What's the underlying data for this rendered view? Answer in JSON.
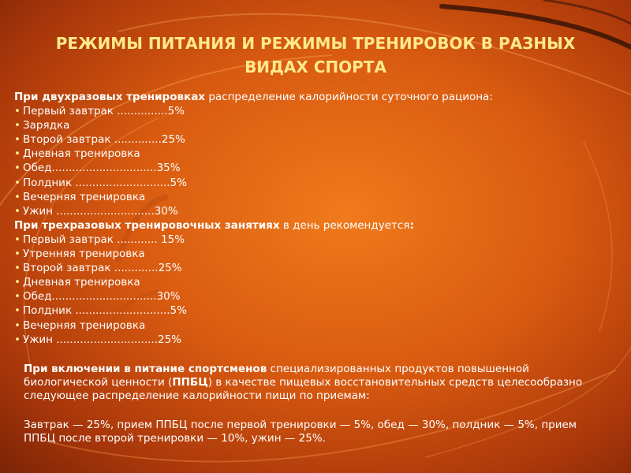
{
  "title": "РЕЖИМЫ ПИТАНИЯ И РЕЖИМЫ ТРЕНИРОВОК В РАЗНЫХ ВИДАХ СПОРТА",
  "colors": {
    "title": "#ffe98a",
    "text": "#ffffff",
    "bg_center": "#f07a1c",
    "bg_edge": "#7a2406"
  },
  "two_sessions": {
    "heading_bold": "При двухразовых тренировках",
    "heading_rest": " распределение калорийности суточного рациона:",
    "bullet": "•",
    "items": [
      "Первый завтрак ...............5%",
      "Зарядка",
      "Второй завтрак ..............25%",
      "Дневная тренировка",
      "Обед...............................35%",
      "Полдник ............................5%",
      "Вечерняя тренировка",
      "Ужин .............................30%"
    ]
  },
  "three_sessions": {
    "heading_bold": "При трехразовых тренировочных занятиях",
    "heading_rest": " в день рекомендуется",
    "heading_colon": ":",
    "bullet": "•",
    "items": [
      "Первый завтрак ............ 15%",
      "Утренняя тренировка",
      "Второй завтрак .............25%",
      "Дневная тренировка",
      "Обед...............................30%",
      "Полдник ............................5%",
      "Вечерняя тренировка",
      "Ужин ..............................25%"
    ]
  },
  "ppbc_paragraph": {
    "part1_bold": "При включении в питание спортсменов",
    "part2": " специализированных продуктов повышенной биологической ценности (",
    "part3_bold": "ППБЦ",
    "part4": ") в качестве пищевых восстановительных средств целесообразно следующее распределение калорийности пищи по приемам:"
  },
  "distribution_text": "Завтрак — 25%, прием ППБЦ после первой тренировки — 5%, обед — 30%, полдник — 5%, прием ППБЦ после второй тренировки — 10%, ужин — 25%."
}
